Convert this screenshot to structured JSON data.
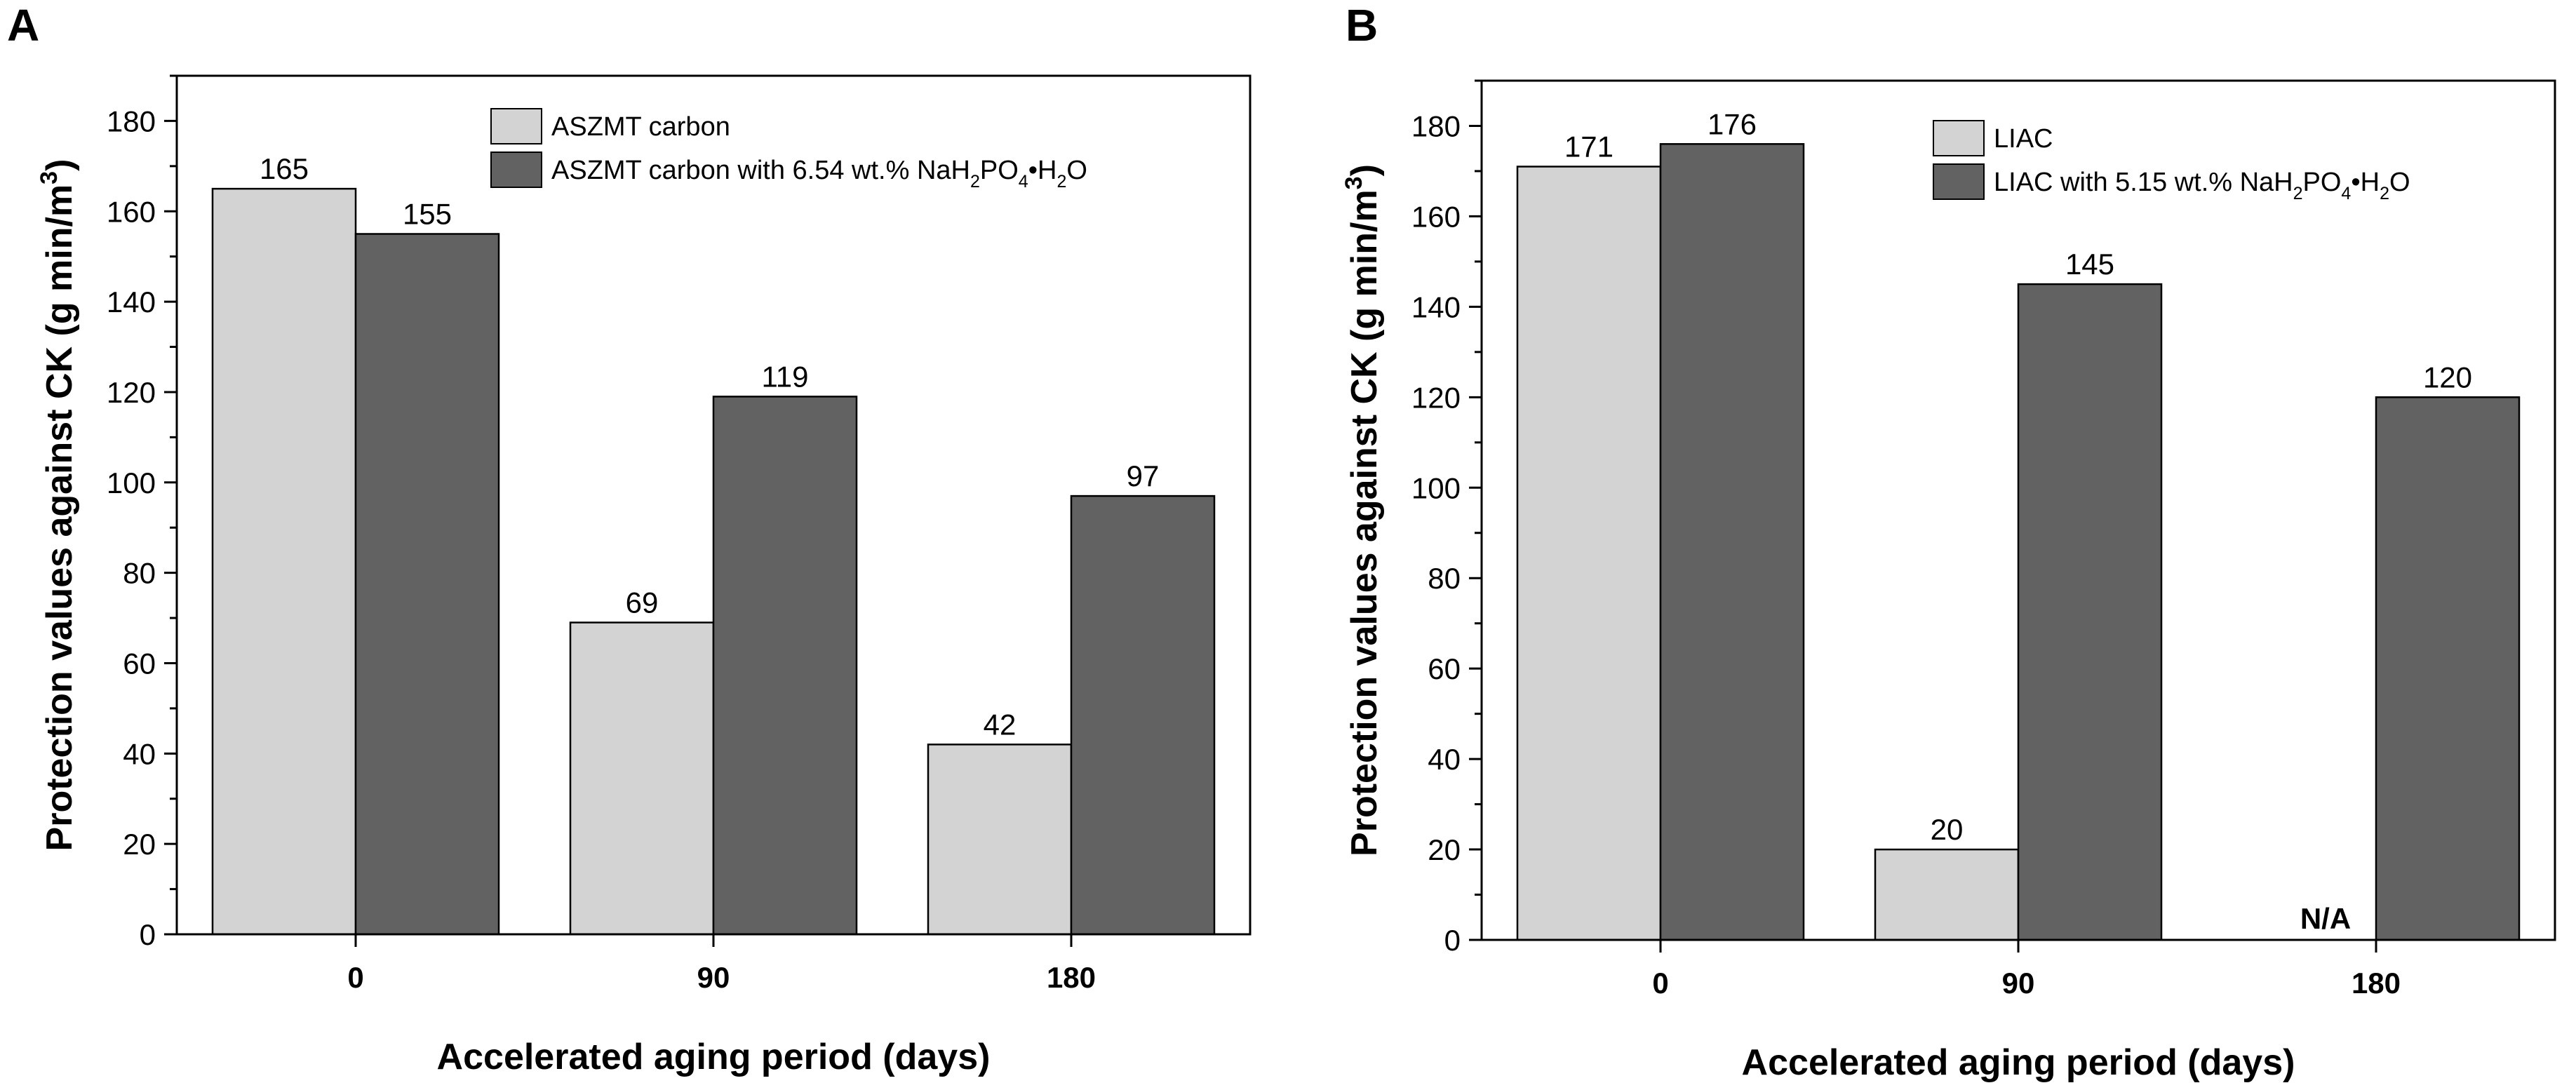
{
  "chart_data": [
    {
      "type": "bar",
      "panel_label": "A",
      "categories": [
        "0",
        "90",
        "180"
      ],
      "series": [
        {
          "name": "ASZMT carbon",
          "values": [
            165,
            69,
            42
          ],
          "color": "#d3d3d3"
        },
        {
          "name": "ASZMT carbon with 6.54 wt.% NaH₂PO₄•H₂O",
          "values": [
            155,
            119,
            97
          ],
          "color": "#626262"
        }
      ],
      "data_labels": [
        [
          "165",
          "69",
          "42"
        ],
        [
          "155",
          "119",
          "97"
        ]
      ],
      "xlabel": "Accelerated aging period (days)",
      "ylabel": "Protection values against CK (g min/m³)",
      "ylim": [
        0,
        190
      ],
      "yticks": [
        0,
        20,
        40,
        60,
        80,
        100,
        120,
        140,
        160,
        180
      ],
      "legend": "top-right",
      "grid": false
    },
    {
      "type": "bar",
      "panel_label": "B",
      "categories": [
        "0",
        "90",
        "180"
      ],
      "series": [
        {
          "name": "LIAC",
          "values": [
            171,
            20,
            null
          ],
          "color": "#d3d3d3"
        },
        {
          "name": "LIAC with 5.15 wt.% NaH₂PO₄•H₂O",
          "values": [
            176,
            145,
            120
          ],
          "color": "#626262"
        }
      ],
      "data_labels": [
        [
          "171",
          "20",
          "N/A"
        ],
        [
          "176",
          "145",
          "120"
        ]
      ],
      "xlabel": "Accelerated aging period (days)",
      "ylabel": "Protection values against CK (g min/m³)",
      "ylim": [
        0,
        190
      ],
      "yticks": [
        0,
        20,
        40,
        60,
        80,
        100,
        120,
        140,
        160,
        180
      ],
      "legend": "top-right",
      "grid": false
    }
  ]
}
